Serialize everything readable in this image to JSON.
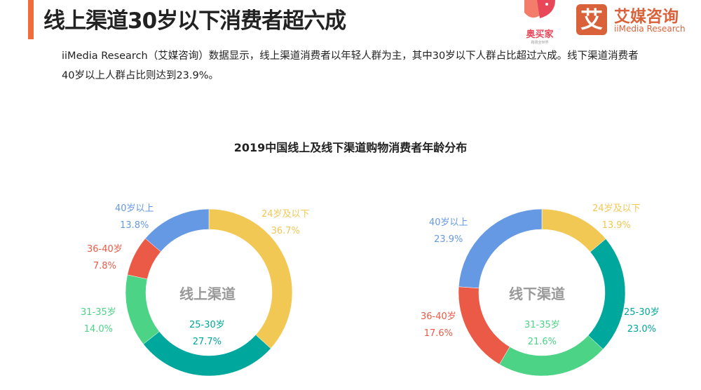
{
  "header": {
    "title": "线上渠道30岁以下消费者超六成",
    "description": "iiMedia Research（艾媒咨询）数据显示，线上渠道消费者以年轻人群为主，其中30岁以下人群占比超过六成。线下渠道消费者40岁以上人群占比则达到23.9%。"
  },
  "logos": {
    "aomaijia": "奥买家",
    "aomaijia_sub": "跨境全世界",
    "iimedia_cn": "艾媒咨询",
    "iimedia_en": "iiMedia Research",
    "iimedia_mark": "艾"
  },
  "chart_data": [
    {
      "type": "pie",
      "title": "2019中国线上及线下渠道购物消费者年龄分布",
      "center_label": "线上渠道",
      "slices": [
        {
          "label": "24岁及以下",
          "value": 36.7,
          "text": "36.7%",
          "color": "#F2C855"
        },
        {
          "label": "25-30岁",
          "value": 27.7,
          "text": "27.7%",
          "color": "#00A79D"
        },
        {
          "label": "31-35岁",
          "value": 14.0,
          "text": "14.0%",
          "color": "#4CD386"
        },
        {
          "label": "36-40岁",
          "value": 7.8,
          "text": "7.8%",
          "color": "#EB5A46"
        },
        {
          "label": "40岁以上",
          "value": 13.8,
          "text": "13.8%",
          "color": "#6699E3"
        }
      ]
    },
    {
      "type": "pie",
      "center_label": "线下渠道",
      "slices": [
        {
          "label": "24岁及以下",
          "value": 13.9,
          "text": "13.9%",
          "color": "#F2C855"
        },
        {
          "label": "25-30岁",
          "value": 23.0,
          "text": "23.0%",
          "color": "#00A79D"
        },
        {
          "label": "31-35岁",
          "value": 21.6,
          "text": "21.6%",
          "color": "#4CD386"
        },
        {
          "label": "36-40岁",
          "value": 17.6,
          "text": "17.6%",
          "color": "#EB5A46"
        },
        {
          "label": "40岁以上",
          "value": 23.9,
          "text": "23.9%",
          "color": "#6699E3"
        }
      ]
    }
  ]
}
